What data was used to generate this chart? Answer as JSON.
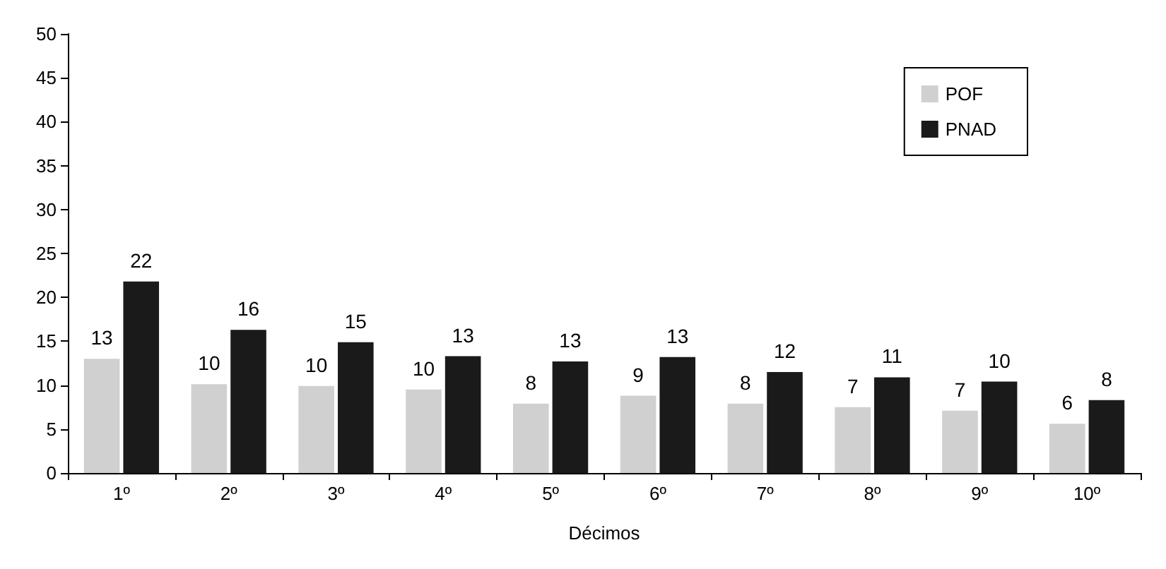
{
  "chart_data": {
    "type": "bar",
    "xlabel": "Décimos",
    "categories": [
      "1º",
      "2º",
      "3º",
      "4º",
      "5º",
      "6º",
      "7º",
      "8º",
      "9º",
      "10º"
    ],
    "series": [
      {
        "name": "POF",
        "color": "#d0d0d0",
        "values": [
          13,
          10.1,
          9.9,
          9.5,
          7.9,
          8.8,
          7.9,
          7.5,
          7.1,
          5.6
        ],
        "value_labels": [
          "13",
          "10",
          "10",
          "10",
          "8",
          "9",
          "8",
          "7",
          "7",
          "6"
        ]
      },
      {
        "name": "PNAD",
        "color": "#1a1a1a",
        "values": [
          21.8,
          16.3,
          14.9,
          13.3,
          12.7,
          13.2,
          11.5,
          10.9,
          10.4,
          8.3
        ],
        "value_labels": [
          "22",
          "16",
          "15",
          "13",
          "13",
          "13",
          "12",
          "11",
          "10",
          "8"
        ]
      }
    ],
    "ylim": [
      0,
      50
    ],
    "yticks": [
      0,
      5,
      10,
      15,
      20,
      25,
      30,
      35,
      40,
      45,
      50
    ],
    "grid": false,
    "legend": "top right"
  }
}
